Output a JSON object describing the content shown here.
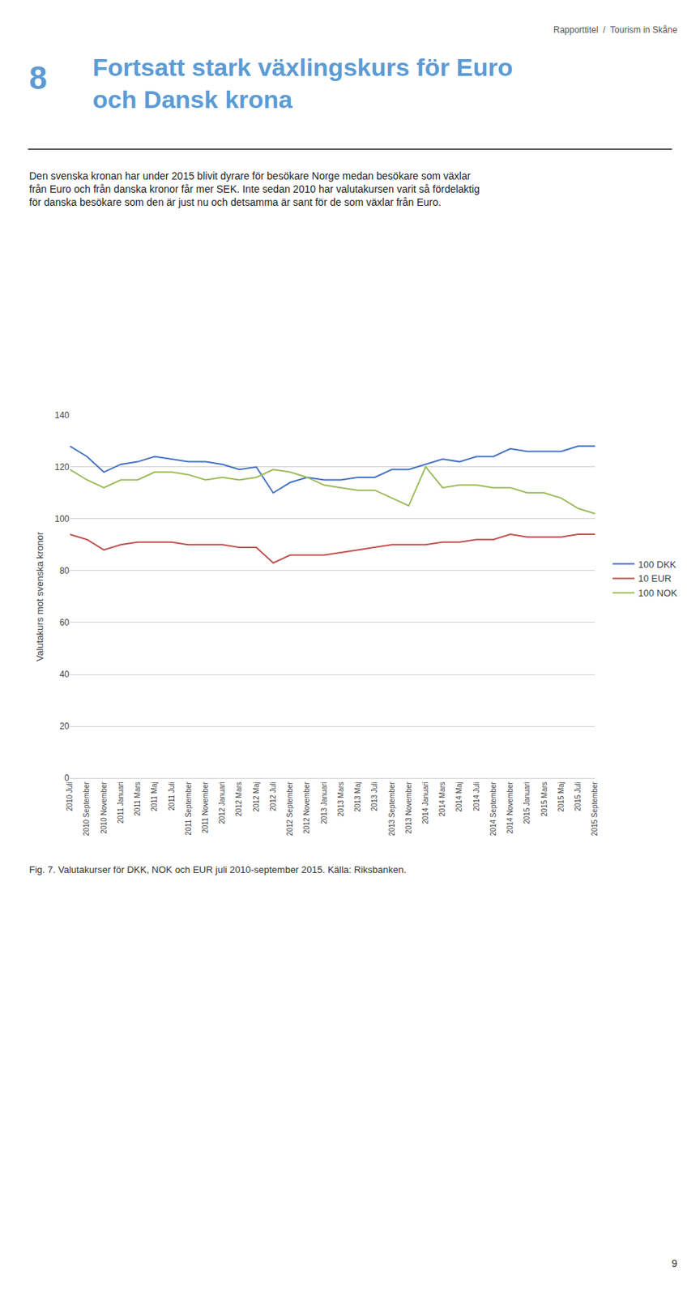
{
  "page": {
    "header": "Rapporttitel  /  Tourism in Skåne",
    "section_number": "8",
    "title": "Fortsatt stark växlingskurs för Euro\noch Dansk krona",
    "title_color": "#5b9bd5",
    "paragraph": "Den svenska kronan har under 2015 blivit dyrare för besökare Norge medan besökare som växlar\nfrån Euro och från danska kronor får mer SEK. Inte sedan 2010 har valutakursen varit så fördelaktig\nför danska besökare som den är just nu och detsamma är sant för de som växlar från Euro.",
    "caption": "Fig. 7. Valutakurser för DKK, NOK och EUR juli 2010-september 2015. Källa: Riksbanken.",
    "page_number": "9"
  },
  "chart_data": {
    "type": "line",
    "ylabel": "Valutakurs mot svenska kronor",
    "categories": [
      "2010 Juli",
      "2010 September",
      "2010 November",
      "2011 Januari",
      "2011 Mars",
      "2011 Maj",
      "2011 Juli",
      "2011 September",
      "2011 November",
      "2012 Januari",
      "2012 Mars",
      "2012 Maj",
      "2012 Juli",
      "2012 September",
      "2012 November",
      "2013 Januari",
      "2013 Mars",
      "2013 Maj",
      "2013 Juli",
      "2013 September",
      "2013 November",
      "2014 Januari",
      "2014 Mars",
      "2014 Maj",
      "2014 Juli",
      "2014 September",
      "2014 November",
      "2015 Januari",
      "2015 Mars",
      "2015 Maj",
      "2015 Juli",
      "2015 September"
    ],
    "series": [
      {
        "name": "100 DKK",
        "color": "#4472c4",
        "values": [
          128,
          124,
          118,
          121,
          122,
          124,
          123,
          122,
          122,
          121,
          119,
          120,
          110,
          114,
          116,
          115,
          115,
          116,
          116,
          119,
          119,
          121,
          123,
          122,
          124,
          124,
          127,
          126,
          126,
          126,
          128,
          128
        ]
      },
      {
        "name": "10 EUR",
        "color": "#c0504d",
        "values": [
          94,
          92,
          88,
          90,
          91,
          91,
          91,
          90,
          90,
          90,
          89,
          89,
          83,
          86,
          86,
          86,
          87,
          88,
          89,
          90,
          90,
          90,
          91,
          91,
          92,
          92,
          94,
          93,
          93,
          93,
          94,
          94
        ]
      },
      {
        "name": "100 NOK",
        "color": "#9bbb59",
        "values": [
          119,
          115,
          112,
          115,
          115,
          118,
          118,
          117,
          115,
          116,
          115,
          116,
          119,
          118,
          116,
          113,
          112,
          111,
          111,
          108,
          105,
          120,
          112,
          113,
          113,
          112,
          112,
          110,
          110,
          108,
          104,
          102
        ]
      }
    ],
    "ylim": [
      0,
      140
    ],
    "yticks": [
      0,
      20,
      40,
      60,
      80,
      100,
      120,
      140
    ],
    "grid": true,
    "legend": "right"
  }
}
